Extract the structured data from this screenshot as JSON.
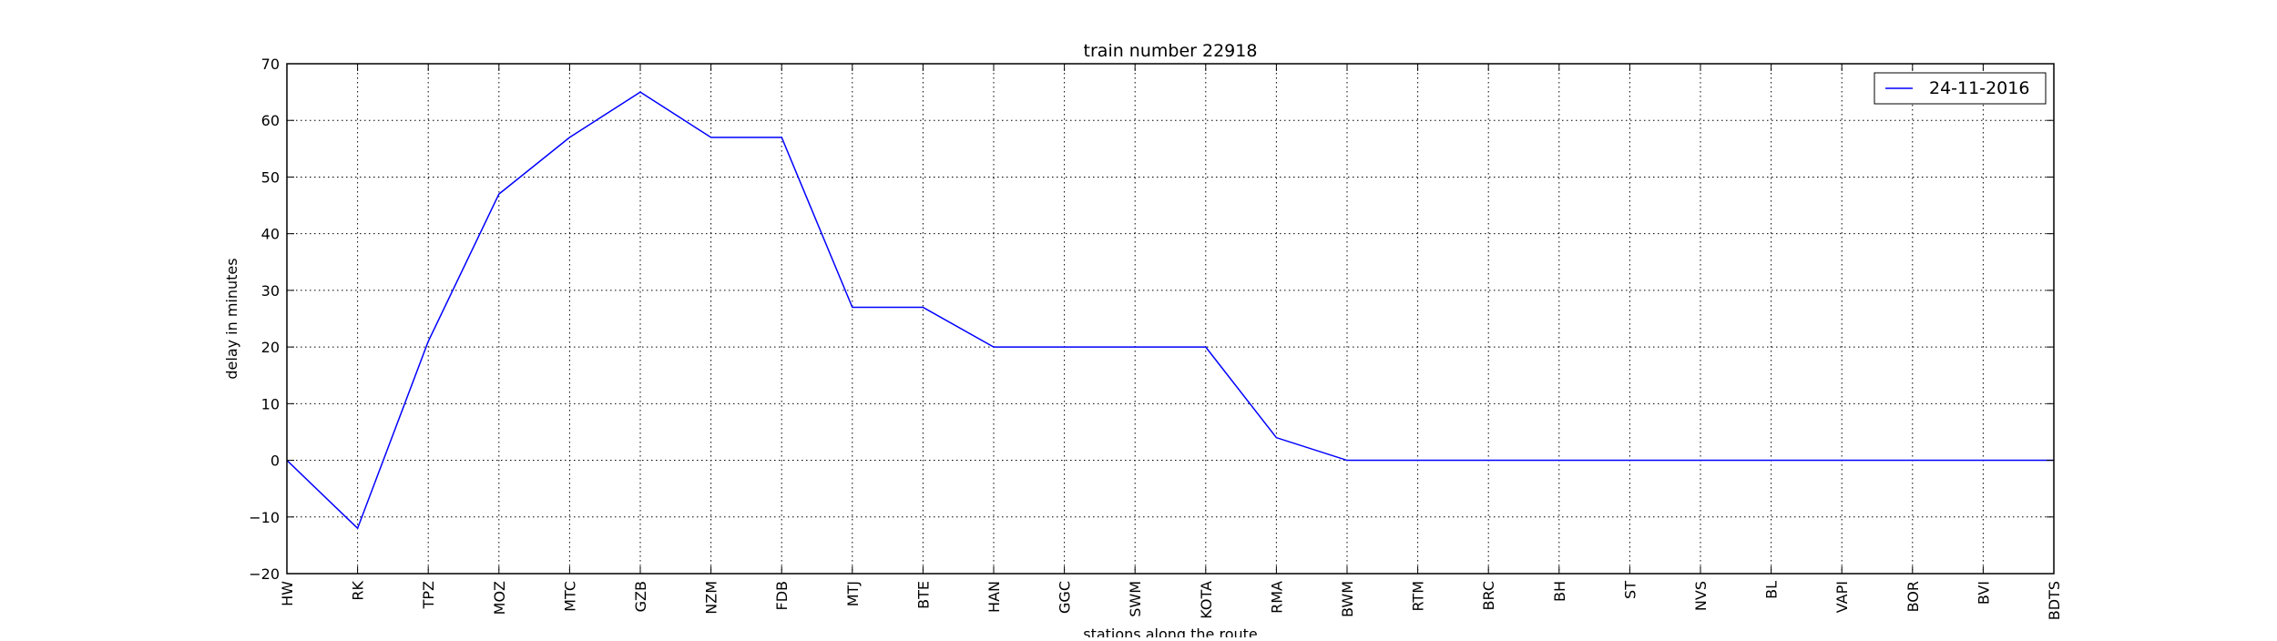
{
  "chart_data": {
    "type": "line",
    "title": "train number 22918",
    "xlabel": "stations along the route",
    "ylabel": "delay in minutes",
    "categories": [
      "HW",
      "RK",
      "TPZ",
      "MOZ",
      "MTC",
      "GZB",
      "NZM",
      "FDB",
      "MTJ",
      "BTE",
      "HAN",
      "GGC",
      "SWM",
      "KOTA",
      "RMA",
      "BWM",
      "RTM",
      "BRC",
      "BH",
      "ST",
      "NVS",
      "BL",
      "VAPI",
      "BOR",
      "BVI",
      "BDTS"
    ],
    "ylim": [
      -20,
      70
    ],
    "yticks": [
      -20,
      -10,
      0,
      10,
      20,
      30,
      40,
      50,
      60,
      70
    ],
    "ytick_labels": [
      "−20",
      "−10",
      "0",
      "10",
      "20",
      "30",
      "40",
      "50",
      "60",
      "70"
    ],
    "grid": true,
    "legend_position": "top-right",
    "series": [
      {
        "name": "24-11-2016",
        "color": "#0000ff",
        "values": [
          0,
          -12,
          21,
          47,
          57,
          65,
          57,
          57,
          27,
          27,
          20,
          20,
          20,
          20,
          4,
          0,
          0,
          0,
          0,
          0,
          0,
          0,
          0,
          0,
          0,
          0
        ]
      }
    ]
  }
}
